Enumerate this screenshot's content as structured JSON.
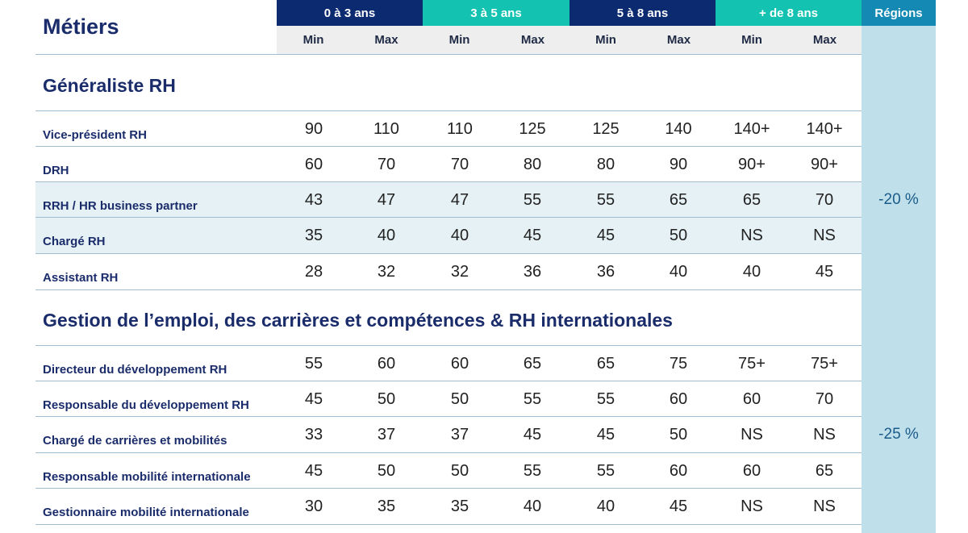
{
  "header": {
    "title": "Métiers",
    "regions": "Régions",
    "bands": [
      {
        "label": "0 à 3 ans",
        "color": "#0b2a6f"
      },
      {
        "label": "3 à 5 ans",
        "color": "#14c2b2"
      },
      {
        "label": "5 à 8 ans",
        "color": "#0b2a6f"
      },
      {
        "label": "+ de 8 ans",
        "color": "#14c2b2"
      }
    ],
    "min_label": "Min",
    "max_label": "Max"
  },
  "colors": {
    "navy": "#0b2a6f",
    "teal": "#14c2b2",
    "regions_bg": "#bfe0ea",
    "regions_head": "#1489b3",
    "row_shade": "#e5f1f5"
  },
  "sections": [
    {
      "title": "Généraliste RH",
      "region": "-20 %",
      "rows": [
        {
          "label": "Vice-président RH",
          "shaded": false,
          "values": [
            "90",
            "110",
            "110",
            "125",
            "125",
            "140",
            "140+",
            "140+"
          ]
        },
        {
          "label": "DRH",
          "shaded": false,
          "values": [
            "60",
            "70",
            "70",
            "80",
            "80",
            "90",
            "90+",
            "90+"
          ]
        },
        {
          "label": "RRH / HR business partner",
          "shaded": true,
          "values": [
            "43",
            "47",
            "47",
            "55",
            "55",
            "65",
            "65",
            "70"
          ]
        },
        {
          "label": "Chargé RH",
          "shaded": true,
          "values": [
            "35",
            "40",
            "40",
            "45",
            "45",
            "50",
            "NS",
            "NS"
          ]
        },
        {
          "label": "Assistant RH",
          "shaded": false,
          "values": [
            "28",
            "32",
            "32",
            "36",
            "36",
            "40",
            "40",
            "45"
          ]
        }
      ]
    },
    {
      "title": "Gestion de l’emploi, des carrières et compétences & RH internationales",
      "region": "-25 %",
      "rows": [
        {
          "label": "Directeur du développement RH",
          "shaded": false,
          "values": [
            "55",
            "60",
            "60",
            "65",
            "65",
            "75",
            "75+",
            "75+"
          ]
        },
        {
          "label": "Responsable du développement RH",
          "shaded": false,
          "values": [
            "45",
            "50",
            "50",
            "55",
            "55",
            "60",
            "60",
            "70"
          ]
        },
        {
          "label": "Chargé de carrières et mobilités",
          "shaded": false,
          "values": [
            "33",
            "37",
            "37",
            "45",
            "45",
            "50",
            "NS",
            "NS"
          ]
        },
        {
          "label": "Responsable mobilité internationale",
          "shaded": false,
          "values": [
            "45",
            "50",
            "50",
            "55",
            "55",
            "60",
            "60",
            "65"
          ]
        },
        {
          "label": "Gestionnaire mobilité internationale",
          "shaded": false,
          "values": [
            "30",
            "35",
            "35",
            "40",
            "40",
            "45",
            "NS",
            "NS"
          ]
        }
      ]
    }
  ]
}
